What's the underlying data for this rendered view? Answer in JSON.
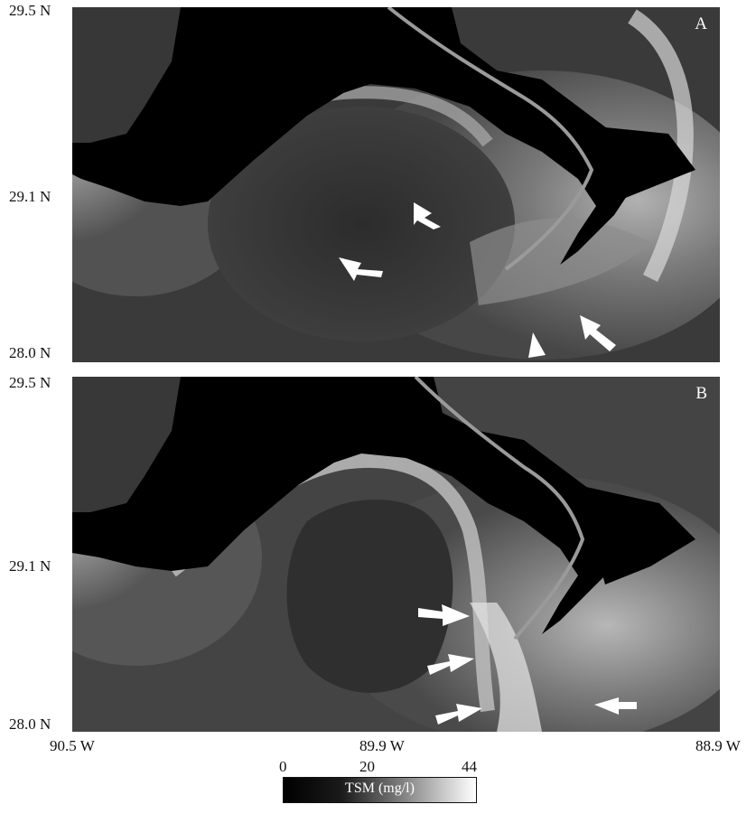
{
  "y_axis": {
    "top": "29.5 N",
    "middle": "29.1 N",
    "bottom": "28.0 N"
  },
  "x_axis": {
    "left": "90.5 W",
    "middle": "89.9 W",
    "right": "88.9 W"
  },
  "panels": [
    {
      "letter": "A"
    },
    {
      "letter": "B"
    }
  ],
  "colorbar": {
    "title": "TSM (mg/l)",
    "ticks": [
      "0",
      "20",
      "44"
    ],
    "colors": [
      "#000000",
      "#6a6a6a",
      "#ffffff"
    ]
  }
}
